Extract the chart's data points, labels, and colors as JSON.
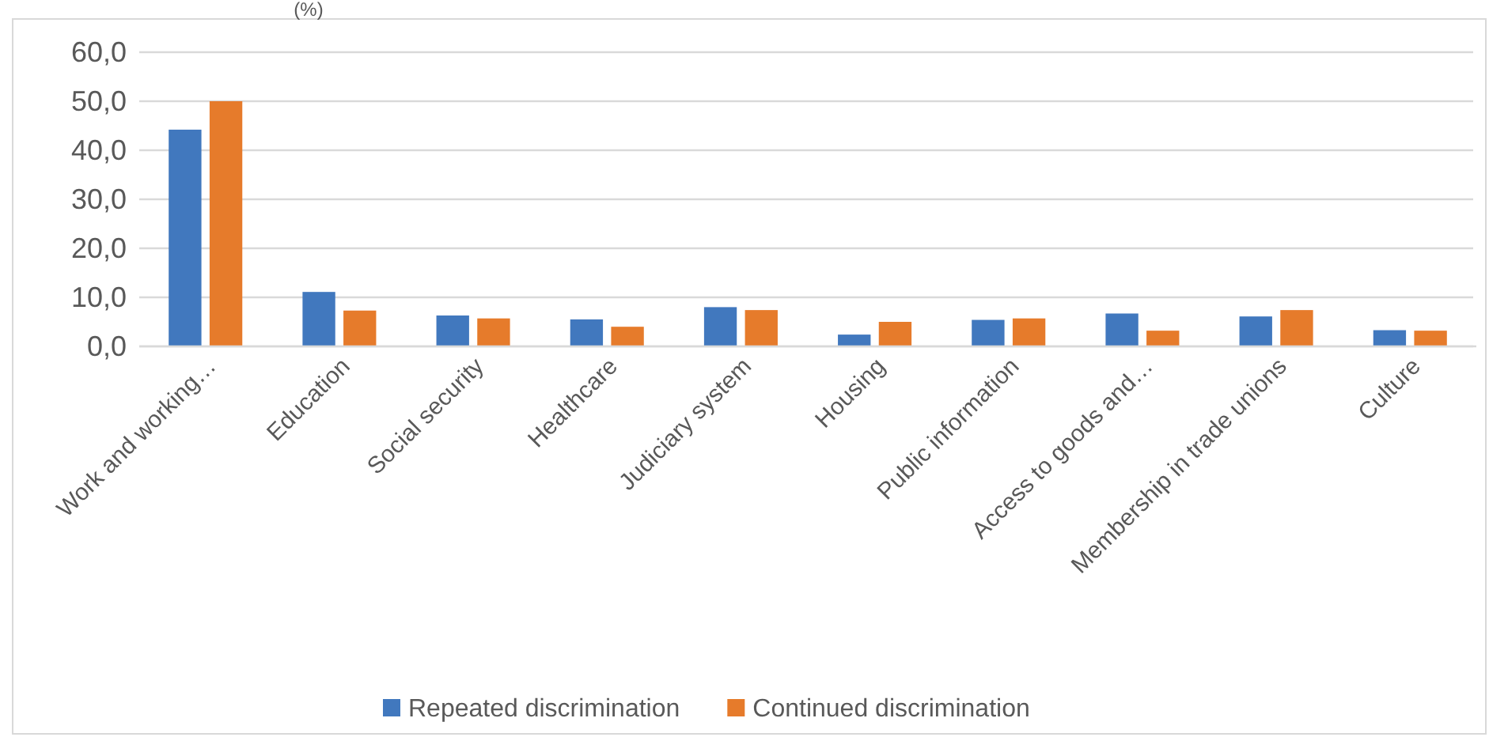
{
  "chart_data": {
    "type": "bar",
    "title": "(%)",
    "categories": [
      "Work and working…",
      "Education",
      "Social security",
      "Healthcare",
      "Judiciary system",
      "Housing",
      "Public information",
      "Access to goods and…",
      "Membership in trade unions",
      "Culture"
    ],
    "series": [
      {
        "name": "Repeated discrimination",
        "color": "#4178be",
        "values": [
          44.2,
          11.1,
          6.3,
          5.5,
          8.0,
          2.4,
          5.4,
          6.7,
          6.1,
          3.3
        ]
      },
      {
        "name": "Continued discrimination",
        "color": "#e67b2b",
        "values": [
          50.0,
          7.3,
          5.7,
          4.0,
          7.4,
          5.0,
          5.7,
          3.2,
          7.4,
          3.2
        ]
      }
    ],
    "ylim": [
      0,
      60
    ],
    "yticks": [
      {
        "value": 0,
        "label": "0,0"
      },
      {
        "value": 10,
        "label": "10,0"
      },
      {
        "value": 20,
        "label": "20,0"
      },
      {
        "value": 30,
        "label": "30,0"
      },
      {
        "value": 40,
        "label": "40,0"
      },
      {
        "value": 50,
        "label": "50,0"
      },
      {
        "value": 60,
        "label": "60,0"
      }
    ],
    "grid": "y",
    "legend": "bottom"
  }
}
